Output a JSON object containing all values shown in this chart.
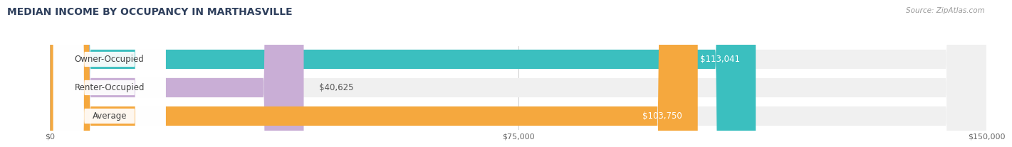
{
  "title": "MEDIAN INCOME BY OCCUPANCY IN MARTHASVILLE",
  "source": "Source: ZipAtlas.com",
  "categories": [
    "Owner-Occupied",
    "Renter-Occupied",
    "Average"
  ],
  "values": [
    113041,
    40625,
    103750
  ],
  "bar_colors": [
    "#3bbfbf",
    "#c9aed6",
    "#f5a83e"
  ],
  "label_colors": [
    "#ffffff",
    "#555555",
    "#ffffff"
  ],
  "value_labels": [
    "$113,041",
    "$40,625",
    "$103,750"
  ],
  "xlim": [
    0,
    150000
  ],
  "xticks": [
    0,
    75000,
    150000
  ],
  "xtick_labels": [
    "$0",
    "$75,000",
    "$150,000"
  ],
  "title_color": "#2e3f5c",
  "source_color": "#999999",
  "bar_bg_color": "#f0f0f0",
  "title_fontsize": 10,
  "source_fontsize": 7.5,
  "cat_label_fontsize": 8.5,
  "value_fontsize": 8.5
}
